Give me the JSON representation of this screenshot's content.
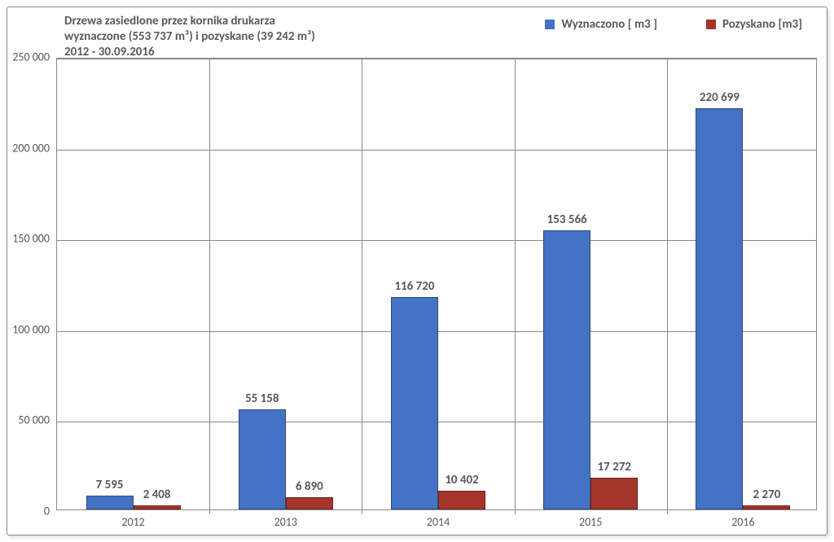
{
  "chart": {
    "type": "bar",
    "title_line1": "Drzewa zasiedlone przez kornika drukarza",
    "title_line2": "wyznaczone (553 737 m³) i pozyskane (39 242 m³)",
    "title_line3": "2012 - 30.09.2016",
    "title_fontsize": 15,
    "title_color": "#595959",
    "categories": [
      "2012",
      "2013",
      "2014",
      "2015",
      "2016"
    ],
    "series": [
      {
        "name": "Wyznaczono [ m3 ]",
        "color": "#4472c4",
        "values": [
          7595,
          55158,
          116720,
          153566,
          220699
        ],
        "labels": [
          "7 595",
          "55 158",
          "116 720",
          "153 566",
          "220 699"
        ]
      },
      {
        "name": "Pozyskano [m3]",
        "color": "#a5352a",
        "values": [
          2408,
          6890,
          10402,
          17272,
          2270
        ],
        "labels": [
          "2 408",
          "6 890",
          "10 402",
          "17 272",
          "2 270"
        ]
      }
    ],
    "y_axis": {
      "min": 0,
      "max": 250000,
      "tick_step": 50000,
      "tick_labels": [
        "0",
        "50 000",
        "100 000",
        "150 000",
        "200 000",
        "250 000"
      ]
    },
    "axis_fontsize": 14,
    "datalabel_fontsize": 15,
    "legend_fontsize": 15,
    "grid_color": "#888888",
    "background_color": "#ffffff",
    "bar_gap_ratio": 0.12,
    "bar_group_width_ratio": 0.62,
    "border_color": "#888888"
  }
}
